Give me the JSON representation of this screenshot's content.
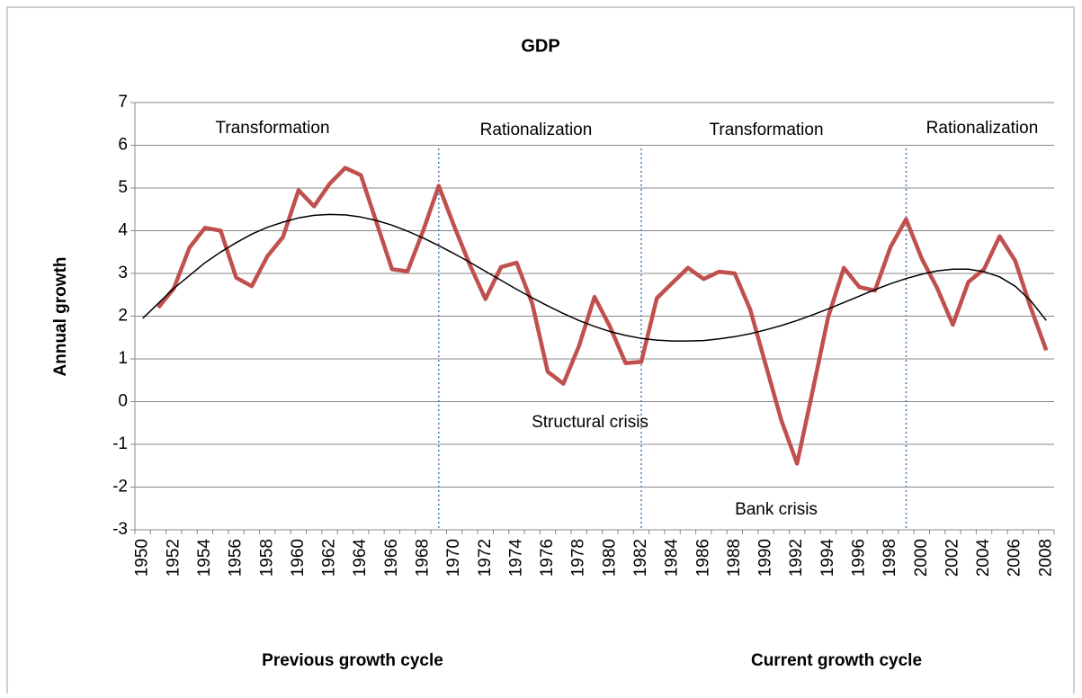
{
  "chart_data": {
    "type": "line",
    "title": "GDP",
    "y_label": "Annual growth",
    "categories": [
      "1950",
      null,
      "1952",
      null,
      "1954",
      null,
      "1956",
      null,
      "1958",
      null,
      "1960",
      null,
      "1962",
      null,
      "1964",
      null,
      "1966",
      null,
      "1968",
      null,
      "1970",
      null,
      "1972",
      null,
      "1974",
      null,
      "1976",
      null,
      "1978",
      null,
      "1980",
      null,
      "1982",
      null,
      "1984",
      null,
      "1986",
      null,
      "1988",
      null,
      "1990",
      null,
      "1992",
      null,
      "1994",
      null,
      "1996",
      null,
      "1998",
      null,
      "2000",
      null,
      "2002",
      null,
      "2004",
      null,
      "2006",
      null,
      "2008"
    ],
    "series": [
      {
        "color": "#c0504d",
        "values": [
          null,
          2.2,
          2.65,
          3.6,
          4.07,
          4.0,
          2.9,
          2.7,
          3.4,
          3.85,
          4.95,
          4.57,
          5.1,
          5.47,
          5.3,
          4.2,
          3.1,
          3.05,
          4.0,
          5.05,
          4.1,
          3.2,
          2.4,
          3.15,
          3.25,
          2.3,
          0.7,
          0.42,
          1.3,
          2.45,
          1.75,
          0.9,
          0.93,
          2.42,
          2.78,
          3.13,
          2.87,
          3.04,
          3.0,
          2.15,
          0.85,
          -0.45,
          -1.45,
          0.25,
          1.98,
          3.13,
          2.68,
          2.6,
          3.62,
          4.27,
          3.35,
          2.65,
          1.8,
          2.8,
          3.1,
          3.87,
          3.3,
          2.2,
          1.2
        ]
      },
      {
        "color": "#000000",
        "values": [
          1.95,
          2.3,
          2.65,
          2.95,
          3.25,
          3.5,
          3.72,
          3.92,
          4.08,
          4.2,
          4.3,
          4.36,
          4.38,
          4.37,
          4.32,
          4.24,
          4.13,
          3.99,
          3.83,
          3.65,
          3.46,
          3.26,
          3.05,
          2.84,
          2.63,
          2.43,
          2.24,
          2.06,
          1.9,
          1.76,
          1.64,
          1.55,
          1.48,
          1.44,
          1.42,
          1.42,
          1.43,
          1.47,
          1.52,
          1.59,
          1.68,
          1.78,
          1.9,
          2.03,
          2.17,
          2.32,
          2.47,
          2.62,
          2.76,
          2.88,
          2.98,
          3.06,
          3.1,
          3.1,
          3.04,
          2.92,
          2.7,
          2.36,
          1.9
        ]
      }
    ],
    "ylim": [
      -3,
      7
    ],
    "yticks": [
      -3,
      -2,
      -1,
      0,
      1,
      2,
      3,
      4,
      5,
      6,
      7
    ],
    "grid": true,
    "vlines": [
      1969,
      1982,
      1999
    ],
    "annotations": [
      "Transformation",
      "Rationalization",
      "Transformation",
      "Rationalization",
      "Structural crisis",
      "Bank crisis",
      "Previous growth cycle",
      "Current growth cycle"
    ]
  }
}
